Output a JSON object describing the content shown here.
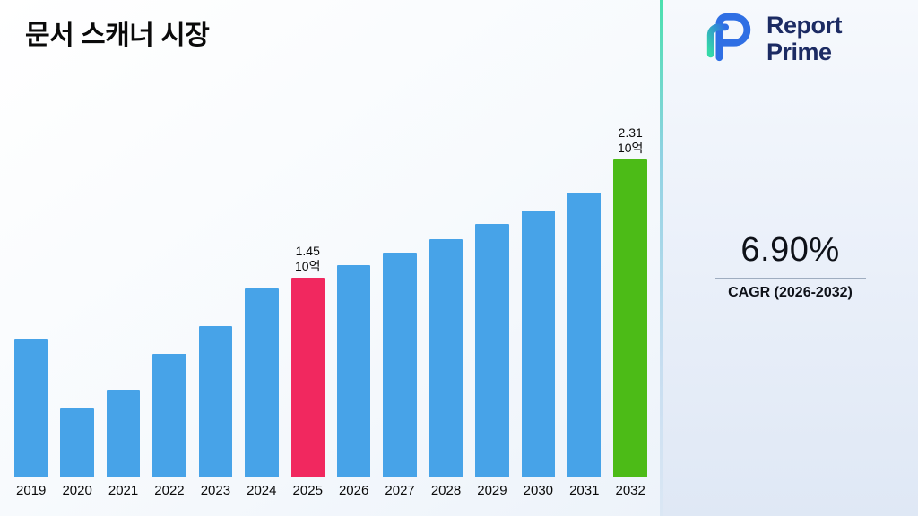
{
  "title": "문서 스캐너 시장",
  "logo": {
    "line1": "Report",
    "line2": "Prime"
  },
  "cagr": {
    "value": "6.90%",
    "label": "CAGR (2026-2032)"
  },
  "chart_data": {
    "type": "bar",
    "title": "문서 스캐너 시장",
    "categories": [
      "2019",
      "2020",
      "2021",
      "2022",
      "2023",
      "2024",
      "2025",
      "2026",
      "2027",
      "2028",
      "2029",
      "2030",
      "2031",
      "2032"
    ],
    "values": [
      1.01,
      0.51,
      0.64,
      0.9,
      1.1,
      1.37,
      1.45,
      1.54,
      1.63,
      1.73,
      1.84,
      1.94,
      2.07,
      2.31
    ],
    "unit": "10억",
    "annotations": [
      {
        "index": 6,
        "value_label": "1.45",
        "unit": "10억"
      },
      {
        "index": 13,
        "value_label": "2.31",
        "unit": "10억"
      }
    ],
    "highlight_index": 6,
    "final_index": 13,
    "colors": {
      "default": "#47A3E8",
      "highlight": "#F1285F",
      "final": "#4CBB17"
    },
    "xlabel": "",
    "ylabel": "",
    "ylim": [
      0,
      2.6
    ],
    "grid": false,
    "legend": false
  }
}
